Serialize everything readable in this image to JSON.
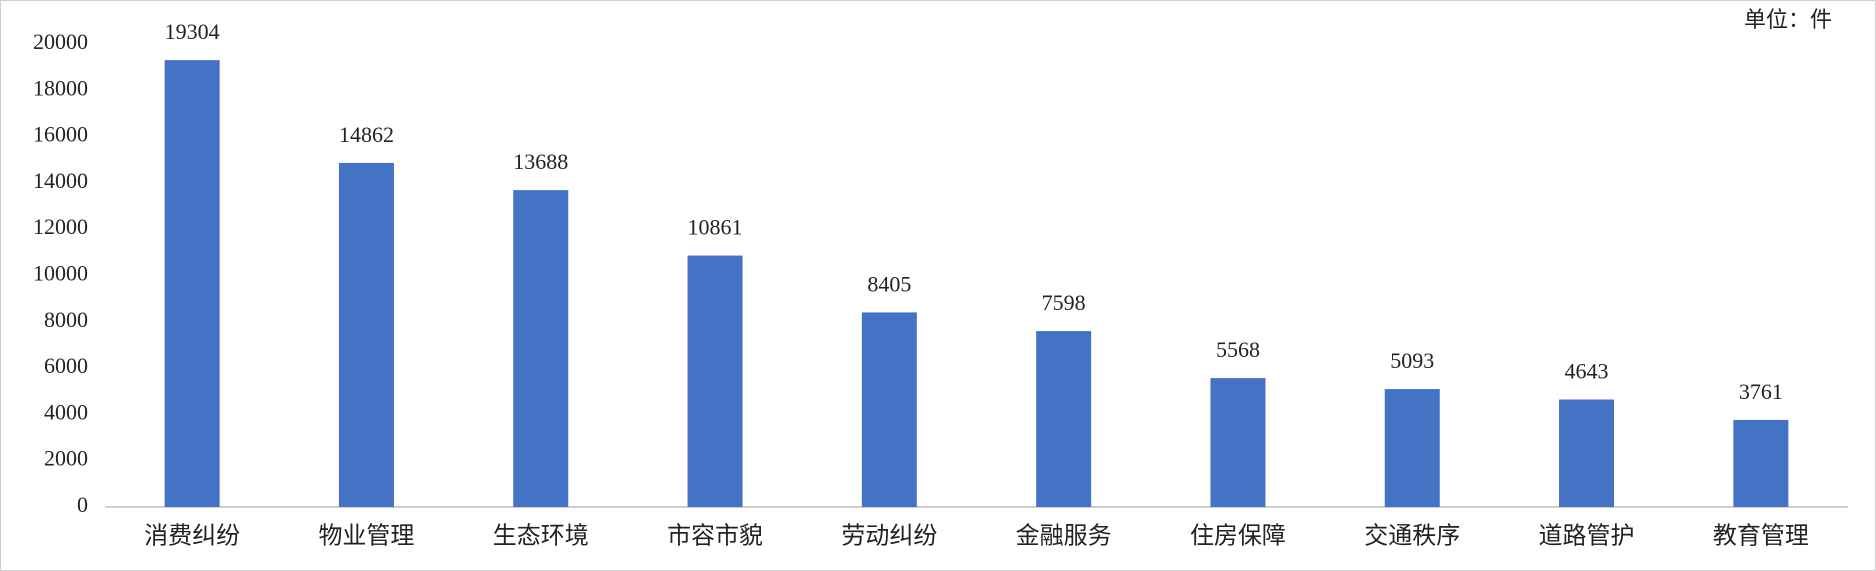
{
  "chart_data": {
    "type": "bar",
    "unit": "单位：件",
    "categories": [
      "消费纠纷",
      "物业管理",
      "生态环境",
      "市容市貌",
      "劳动纠纷",
      "金融服务",
      "住房保障",
      "交通秩序",
      "道路管护",
      "教育管理"
    ],
    "values": [
      19304,
      14862,
      13688,
      10861,
      8405,
      7598,
      5568,
      5093,
      4643,
      3761
    ],
    "color": "#4472c4",
    "ylim": [
      0,
      20000
    ],
    "yticks": [
      0,
      2000,
      4000,
      6000,
      8000,
      10000,
      12000,
      14000,
      16000,
      18000,
      20000
    ],
    "grid": false
  }
}
